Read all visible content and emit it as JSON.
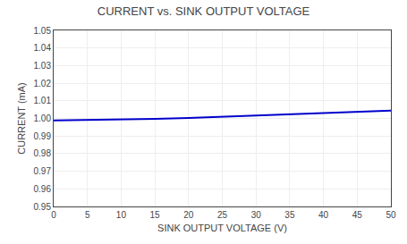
{
  "chart_data": {
    "type": "line",
    "title": "CURRENT vs. SINK OUTPUT VOLTAGE",
    "xlabel": "SINK OUTPUT VOLTAGE (V)",
    "ylabel": "CURRENT (mA)",
    "x": [
      0,
      5,
      10,
      15,
      20,
      25,
      30,
      35,
      40,
      45,
      50
    ],
    "values": [
      0.9988,
      0.999,
      0.9993,
      0.9997,
      1.0003,
      1.001,
      1.0018,
      1.0025,
      1.0031,
      1.0037,
      1.0045
    ],
    "color": "#0000CC",
    "xlim": [
      0,
      50
    ],
    "ylim": [
      0.95,
      1.05
    ],
    "xticks": [
      0,
      5,
      10,
      15,
      20,
      25,
      30,
      35,
      40,
      45,
      50
    ],
    "yticks": [
      0.95,
      0.96,
      0.97,
      0.98,
      0.99,
      {
        "value": 1.0,
        "label": "1.00"
      },
      1.01,
      1.02,
      1.03,
      1.04,
      1.05
    ],
    "grid": true
  }
}
